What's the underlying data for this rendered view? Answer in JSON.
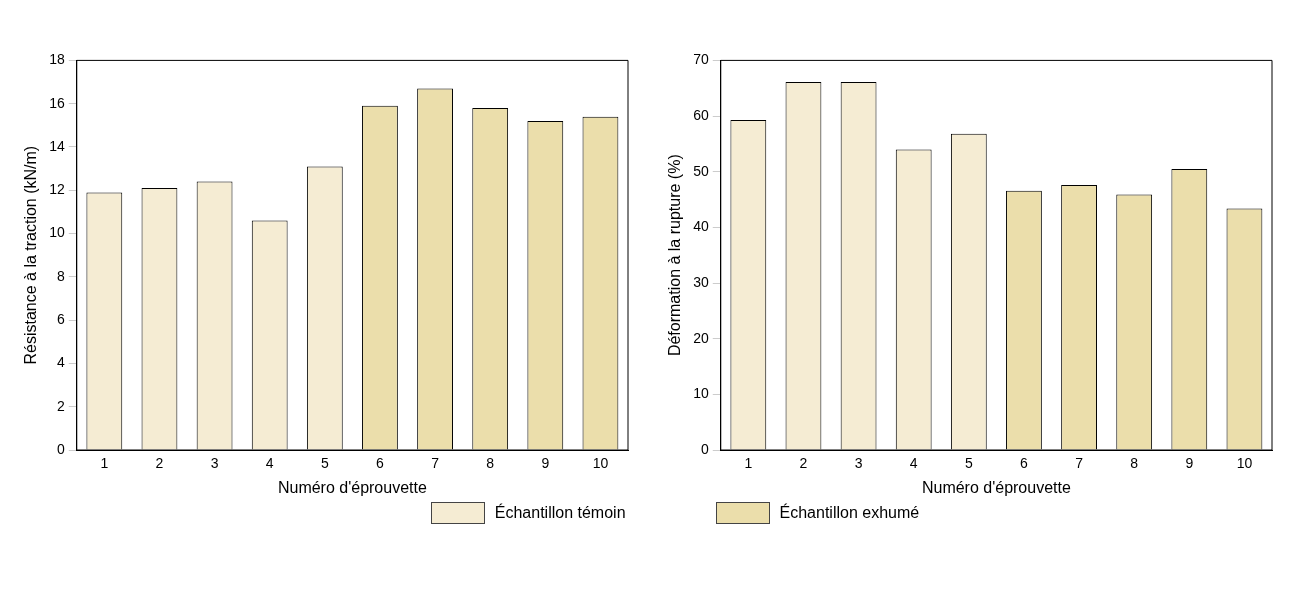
{
  "chart_data": [
    {
      "type": "bar",
      "xlabel": "Numéro d'éprouvette",
      "ylabel": "Résistance à la traction (kN/m)",
      "categories": [
        "1",
        "2",
        "3",
        "4",
        "5",
        "6",
        "7",
        "8",
        "9",
        "10"
      ],
      "series": [
        {
          "name": "Échantillon témoin",
          "color": "#f5ecd3",
          "values": [
            11.9,
            12.1,
            12.4,
            10.6,
            13.1,
            null,
            null,
            null,
            null,
            null
          ]
        },
        {
          "name": "Échantillon exhumé",
          "color": "#ebdeab",
          "values": [
            null,
            null,
            null,
            null,
            null,
            15.9,
            16.7,
            15.8,
            15.2,
            15.4
          ]
        }
      ],
      "ylim": [
        0,
        18
      ],
      "yticks": [
        0,
        2,
        4,
        6,
        8,
        10,
        12,
        14,
        16,
        18
      ],
      "grid": false,
      "legend": "bottom"
    },
    {
      "type": "bar",
      "xlabel": "Numéro d'éprouvette",
      "ylabel": "Déformation à la rupture (%)",
      "categories": [
        "1",
        "2",
        "3",
        "4",
        "5",
        "6",
        "7",
        "8",
        "9",
        "10"
      ],
      "series": [
        {
          "color": "#f5ecd3",
          "values": [
            59.3,
            66.1,
            66.1,
            54.0,
            56.8,
            null,
            null,
            null,
            null,
            null
          ]
        },
        {
          "color": "#ebdeab",
          "values": [
            null,
            null,
            null,
            null,
            null,
            46.6,
            47.6,
            45.9,
            50.5,
            43.4
          ]
        }
      ],
      "ylim": [
        0,
        70
      ],
      "yticks": [
        0,
        10,
        20,
        30,
        40,
        50,
        60,
        70
      ],
      "grid": false
    }
  ]
}
